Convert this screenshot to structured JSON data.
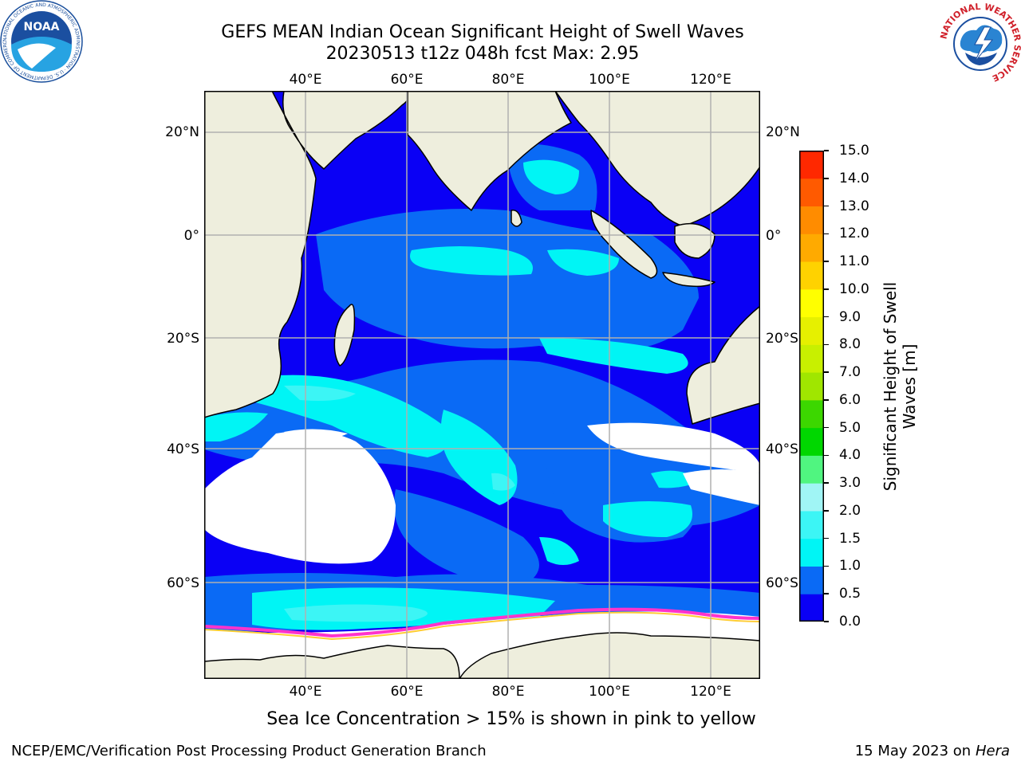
{
  "title": {
    "line1": "GEFS MEAN Indian Ocean Significant Height of Swell Waves",
    "line2": "20230513 t12z 048h fcst   Max: 2.95"
  },
  "map": {
    "lon_labels": [
      "40°E",
      "60°E",
      "80°E",
      "100°E",
      "120°E"
    ],
    "lat_labels": [
      "20°N",
      "0°",
      "20°S",
      "40°S",
      "60°S"
    ],
    "extent": {
      "lon": [
        20,
        130
      ],
      "lat": [
        -70,
        27
      ]
    },
    "colors": {
      "land": "#eeeedd",
      "ice_free_missing": "#ffffff",
      "grid": "#b0b0b0"
    },
    "sea_ice_note": "Sea Ice Concentration > 15% is shown in pink to yellow"
  },
  "colorbar": {
    "label": "Significant Height of Swell Waves [m]",
    "label_line1": "Significant Height of Swell",
    "label_line2": "Waves [m]",
    "ticks": [
      "0.0",
      "0.5",
      "1.0",
      "1.5",
      "2.0",
      "3.0",
      "4.0",
      "5.0",
      "6.0",
      "7.0",
      "8.0",
      "9.0",
      "10.0",
      "11.0",
      "12.0",
      "13.0",
      "14.0",
      "15.0"
    ],
    "colors": [
      "#0a00f5",
      "#0a6af5",
      "#00f5f5",
      "#3cf5f5",
      "#a0f5f5",
      "#50f580",
      "#00d700",
      "#3cd700",
      "#a0e600",
      "#c8f000",
      "#e6f000",
      "#ffff00",
      "#ffd200",
      "#ffaa00",
      "#ff8c00",
      "#ff5a00",
      "#ff2800"
    ]
  },
  "logos": {
    "noaa_text": "NOAA",
    "noaa_ring": "NATIONAL OCEANIC AND ATMOSPHERIC ADMINISTRATION · U.S. DEPARTMENT OF COMMERCE",
    "nws_ring": "NATIONAL WEATHER SERVICE"
  },
  "footer": {
    "left": "NCEP/EMC/Verification Post Processing Product Generation Branch",
    "right_date": "15 May 2023 on",
    "right_host": "Hera"
  }
}
